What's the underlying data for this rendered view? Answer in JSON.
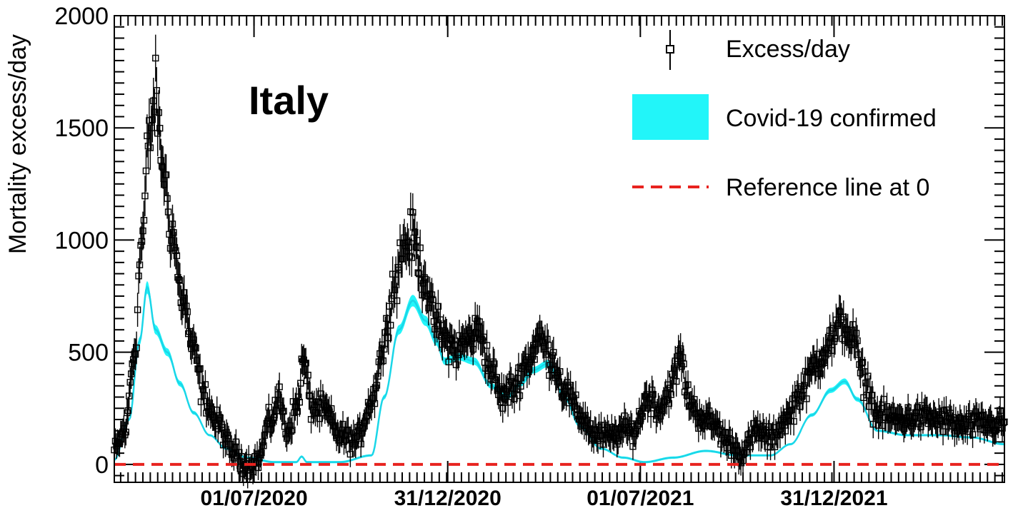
{
  "chart_data": {
    "type": "scatter",
    "title": "",
    "xlabel": "",
    "ylabel": "Mortality excess/day",
    "annotation": "Italy",
    "ylim": [
      -80,
      2000
    ],
    "xlim": [
      "2020-02-20",
      "2022-06-10"
    ],
    "yticks": [
      "0",
      "500",
      "1000",
      "1500",
      "2000"
    ],
    "xticks": [
      {
        "date": "2020-07-01",
        "label": "01/07/2020"
      },
      {
        "date": "2020-12-31",
        "label": "31/12/2020"
      },
      {
        "date": "2021-07-01",
        "label": "01/07/2021"
      },
      {
        "date": "2021-12-31",
        "label": "31/12/2021"
      }
    ],
    "grid": false,
    "legend_position": "top-right",
    "colors": {
      "excess": "#000000",
      "covid": "#22e5f2",
      "reference": "#e8231f"
    },
    "series": [
      {
        "name": "Excess/day",
        "kind": "points-with-error-bars",
        "anchors": [
          [
            "2020-02-20",
            60
          ],
          [
            "2020-03-01",
            150
          ],
          [
            "2020-03-10",
            500
          ],
          [
            "2020-03-17",
            1000
          ],
          [
            "2020-03-24",
            1450
          ],
          [
            "2020-03-30",
            1650
          ],
          [
            "2020-04-05",
            1350
          ],
          [
            "2020-04-14",
            1050
          ],
          [
            "2020-04-24",
            750
          ],
          [
            "2020-05-05",
            500
          ],
          [
            "2020-05-15",
            300
          ],
          [
            "2020-05-28",
            180
          ],
          [
            "2020-06-10",
            60
          ],
          [
            "2020-06-25",
            0
          ],
          [
            "2020-07-05",
            20
          ],
          [
            "2020-07-15",
            180
          ],
          [
            "2020-07-25",
            290
          ],
          [
            "2020-08-01",
            150
          ],
          [
            "2020-08-10",
            250
          ],
          [
            "2020-08-17",
            460
          ],
          [
            "2020-08-24",
            260
          ],
          [
            "2020-09-05",
            240
          ],
          [
            "2020-09-20",
            130
          ],
          [
            "2020-10-05",
            100
          ],
          [
            "2020-10-20",
            280
          ],
          [
            "2020-10-30",
            500
          ],
          [
            "2020-11-10",
            800
          ],
          [
            "2020-11-20",
            980
          ],
          [
            "2020-11-28",
            1010
          ],
          [
            "2020-12-08",
            850
          ],
          [
            "2020-12-18",
            650
          ],
          [
            "2020-12-28",
            560
          ],
          [
            "2021-01-08",
            510
          ],
          [
            "2021-01-20",
            560
          ],
          [
            "2021-01-30",
            600
          ],
          [
            "2021-02-10",
            420
          ],
          [
            "2021-02-20",
            300
          ],
          [
            "2021-03-03",
            340
          ],
          [
            "2021-03-15",
            450
          ],
          [
            "2021-03-28",
            560
          ],
          [
            "2021-04-08",
            480
          ],
          [
            "2021-04-20",
            340
          ],
          [
            "2021-05-05",
            220
          ],
          [
            "2021-05-20",
            130
          ],
          [
            "2021-06-01",
            120
          ],
          [
            "2021-06-15",
            150
          ],
          [
            "2021-06-25",
            150
          ],
          [
            "2021-07-08",
            300
          ],
          [
            "2021-07-20",
            250
          ],
          [
            "2021-07-30",
            350
          ],
          [
            "2021-08-08",
            480
          ],
          [
            "2021-08-15",
            300
          ],
          [
            "2021-08-25",
            220
          ],
          [
            "2021-09-08",
            180
          ],
          [
            "2021-09-22",
            100
          ],
          [
            "2021-10-05",
            50
          ],
          [
            "2021-10-20",
            150
          ],
          [
            "2021-11-01",
            110
          ],
          [
            "2021-11-15",
            200
          ],
          [
            "2021-12-01",
            330
          ],
          [
            "2021-12-15",
            460
          ],
          [
            "2021-12-28",
            550
          ],
          [
            "2022-01-08",
            630
          ],
          [
            "2022-01-18",
            560
          ],
          [
            "2022-01-28",
            380
          ],
          [
            "2022-02-10",
            220
          ],
          [
            "2022-03-01",
            200
          ],
          [
            "2022-03-20",
            210
          ],
          [
            "2022-04-10",
            200
          ],
          [
            "2022-05-01",
            170
          ],
          [
            "2022-05-20",
            180
          ],
          [
            "2022-06-10",
            180
          ]
        ]
      },
      {
        "name": "Covid-19 confirmed",
        "kind": "band",
        "anchors": [
          [
            "2020-02-20",
            20
          ],
          [
            "2020-03-05",
            200
          ],
          [
            "2020-03-15",
            550
          ],
          [
            "2020-03-22",
            790
          ],
          [
            "2020-03-30",
            600
          ],
          [
            "2020-04-10",
            500
          ],
          [
            "2020-04-22",
            360
          ],
          [
            "2020-05-05",
            230
          ],
          [
            "2020-05-20",
            130
          ],
          [
            "2020-06-05",
            70
          ],
          [
            "2020-06-25",
            30
          ],
          [
            "2020-07-20",
            10
          ],
          [
            "2020-08-10",
            10
          ],
          [
            "2020-08-15",
            35
          ],
          [
            "2020-08-20",
            10
          ],
          [
            "2020-09-20",
            10
          ],
          [
            "2020-10-20",
            40
          ],
          [
            "2020-11-01",
            300
          ],
          [
            "2020-11-15",
            600
          ],
          [
            "2020-11-28",
            730
          ],
          [
            "2020-12-10",
            640
          ],
          [
            "2020-12-20",
            550
          ],
          [
            "2020-12-28",
            460
          ],
          [
            "2021-01-10",
            480
          ],
          [
            "2021-01-25",
            460
          ],
          [
            "2021-02-10",
            350
          ],
          [
            "2021-02-25",
            300
          ],
          [
            "2021-03-10",
            360
          ],
          [
            "2021-03-22",
            420
          ],
          [
            "2021-04-05",
            450
          ],
          [
            "2021-04-20",
            300
          ],
          [
            "2021-05-05",
            170
          ],
          [
            "2021-05-25",
            70
          ],
          [
            "2021-06-15",
            30
          ],
          [
            "2021-07-05",
            10
          ],
          [
            "2021-08-01",
            30
          ],
          [
            "2021-09-01",
            60
          ],
          [
            "2021-10-01",
            40
          ],
          [
            "2021-11-01",
            40
          ],
          [
            "2021-11-20",
            90
          ],
          [
            "2021-12-10",
            220
          ],
          [
            "2021-12-28",
            330
          ],
          [
            "2022-01-10",
            370
          ],
          [
            "2022-01-22",
            290
          ],
          [
            "2022-02-10",
            150
          ],
          [
            "2022-03-10",
            130
          ],
          [
            "2022-04-10",
            130
          ],
          [
            "2022-05-10",
            120
          ],
          [
            "2022-06-10",
            90
          ]
        ]
      },
      {
        "name": "Reference line at 0",
        "kind": "dashed-line",
        "y": 0
      }
    ]
  }
}
